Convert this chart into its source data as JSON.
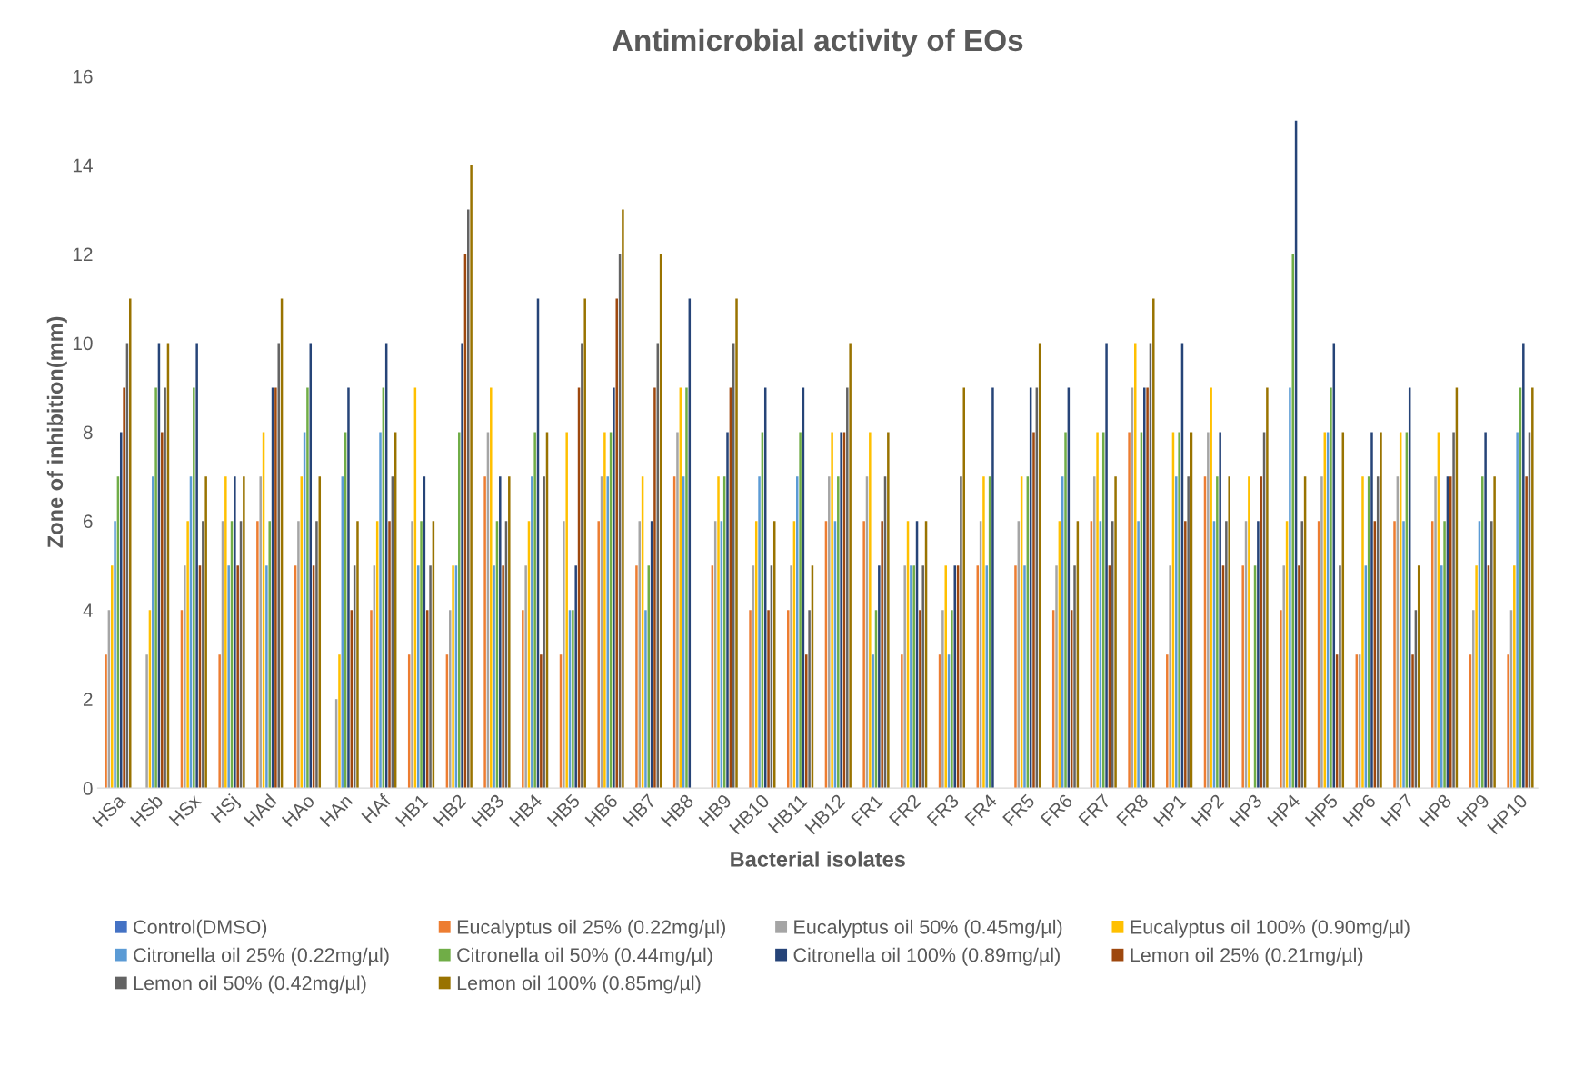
{
  "chart_data": {
    "type": "bar",
    "title": "Antimicrobial activity of EOs",
    "xlabel": "Bacterial isolates",
    "ylabel": "Zone of inhibition(mm)",
    "categories": [
      "HSa",
      "HSb",
      "HSx",
      "HSj",
      "HAd",
      "HAo",
      "HAn",
      "HAf",
      "HB1",
      "HB2",
      "HB3",
      "HB4",
      "HB5",
      "HB6",
      "HB7",
      "HB8",
      "HB9",
      "HB10",
      "HB11",
      "HB12",
      "FR1",
      "FR2",
      "FR3",
      "FR4",
      "FR5",
      "FR6",
      "FR7",
      "FR8",
      "HP1",
      "HP2",
      "HP3",
      "HP4",
      "HP5",
      "HP6",
      "HP7",
      "HP8",
      "HP9",
      "HP10"
    ],
    "series": [
      {
        "name": "Control(DMSO)",
        "color": "#4472c4",
        "values": [
          0,
          0,
          0,
          0,
          0,
          0,
          0,
          0,
          0,
          0,
          0,
          0,
          0,
          0,
          0,
          0,
          0,
          0,
          0,
          0,
          0,
          0,
          0,
          0,
          0,
          0,
          0,
          0,
          0,
          0,
          0,
          0,
          0,
          0,
          0,
          0,
          0,
          0
        ]
      },
      {
        "name": "Eucalyptus oil 25% (0.22mg/µl)",
        "color": "#ed7d31",
        "values": [
          3,
          0,
          4,
          3,
          6,
          5,
          0,
          4,
          3,
          3,
          7,
          4,
          3,
          6,
          5,
          7,
          5,
          4,
          4,
          6,
          6,
          3,
          3,
          5,
          5,
          4,
          6,
          8,
          3,
          7,
          5,
          4,
          6,
          3,
          6,
          6,
          3,
          3
        ]
      },
      {
        "name": "Eucalyptus oil 50% (0.45mg/µl)",
        "color": "#a5a5a5",
        "values": [
          4,
          3,
          5,
          6,
          7,
          6,
          2,
          5,
          6,
          4,
          8,
          5,
          6,
          7,
          6,
          8,
          6,
          5,
          5,
          7,
          7,
          5,
          4,
          6,
          6,
          5,
          7,
          9,
          5,
          8,
          6,
          5,
          7,
          3,
          7,
          7,
          4,
          4
        ]
      },
      {
        "name": "Eucalyptus oil 100% (0.90mg/µl)",
        "color": "#ffc000",
        "values": [
          5,
          4,
          6,
          7,
          8,
          7,
          3,
          6,
          9,
          5,
          9,
          6,
          8,
          8,
          7,
          9,
          7,
          6,
          6,
          8,
          8,
          6,
          5,
          7,
          7,
          6,
          8,
          10,
          8,
          9,
          7,
          6,
          8,
          7,
          8,
          8,
          5,
          5
        ]
      },
      {
        "name": "Citronella oil 25% (0.22mg/µl)",
        "color": "#5b9bd5",
        "values": [
          6,
          7,
          7,
          5,
          5,
          8,
          7,
          8,
          5,
          5,
          5,
          7,
          4,
          7,
          4,
          7,
          6,
          7,
          7,
          6,
          3,
          5,
          3,
          5,
          5,
          7,
          6,
          6,
          7,
          6,
          0,
          9,
          8,
          5,
          6,
          5,
          6,
          8
        ]
      },
      {
        "name": "Citronella oil 50% (0.44mg/µl)",
        "color": "#70ad47",
        "values": [
          7,
          9,
          9,
          6,
          6,
          9,
          8,
          9,
          6,
          8,
          6,
          8,
          4,
          8,
          5,
          9,
          7,
          8,
          8,
          7,
          4,
          5,
          4,
          7,
          7,
          8,
          8,
          8,
          8,
          7,
          5,
          12,
          9,
          7,
          8,
          6,
          7,
          9
        ]
      },
      {
        "name": "Citronella oil 100% (0.89mg/µl)",
        "color": "#264478",
        "values": [
          8,
          10,
          10,
          7,
          9,
          10,
          9,
          10,
          7,
          10,
          7,
          11,
          5,
          9,
          6,
          11,
          8,
          9,
          9,
          8,
          5,
          6,
          5,
          9,
          9,
          9,
          10,
          9,
          10,
          8,
          6,
          15,
          10,
          8,
          9,
          7,
          8,
          10
        ]
      },
      {
        "name": "Lemon oil 25% (0.21mg/µl)",
        "color": "#9e480e",
        "values": [
          9,
          8,
          5,
          5,
          9,
          5,
          4,
          6,
          4,
          12,
          5,
          3,
          9,
          11,
          9,
          0,
          9,
          4,
          3,
          8,
          6,
          4,
          5,
          0,
          8,
          4,
          5,
          9,
          6,
          5,
          7,
          5,
          3,
          6,
          3,
          7,
          5,
          7
        ]
      },
      {
        "name": "Lemon oil 50% (0.42mg/µl)",
        "color": "#636363",
        "values": [
          10,
          9,
          6,
          6,
          10,
          6,
          5,
          7,
          5,
          13,
          6,
          7,
          10,
          12,
          10,
          0,
          10,
          5,
          4,
          9,
          7,
          5,
          7,
          0,
          9,
          5,
          6,
          10,
          7,
          6,
          8,
          6,
          5,
          7,
          4,
          8,
          6,
          8
        ]
      },
      {
        "name": "Lemon oil 100% (0.85mg/µl)",
        "color": "#997300",
        "values": [
          11,
          10,
          7,
          7,
          11,
          7,
          6,
          8,
          6,
          14,
          7,
          8,
          11,
          13,
          12,
          0,
          11,
          6,
          5,
          10,
          8,
          6,
          9,
          0,
          10,
          6,
          7,
          11,
          8,
          7,
          9,
          7,
          8,
          8,
          5,
          9,
          7,
          9
        ]
      }
    ],
    "ylim": [
      0,
      16
    ],
    "yticks": [
      0,
      2,
      4,
      6,
      8,
      10,
      12,
      14,
      16
    ],
    "grid": false,
    "legend": "bottom"
  }
}
